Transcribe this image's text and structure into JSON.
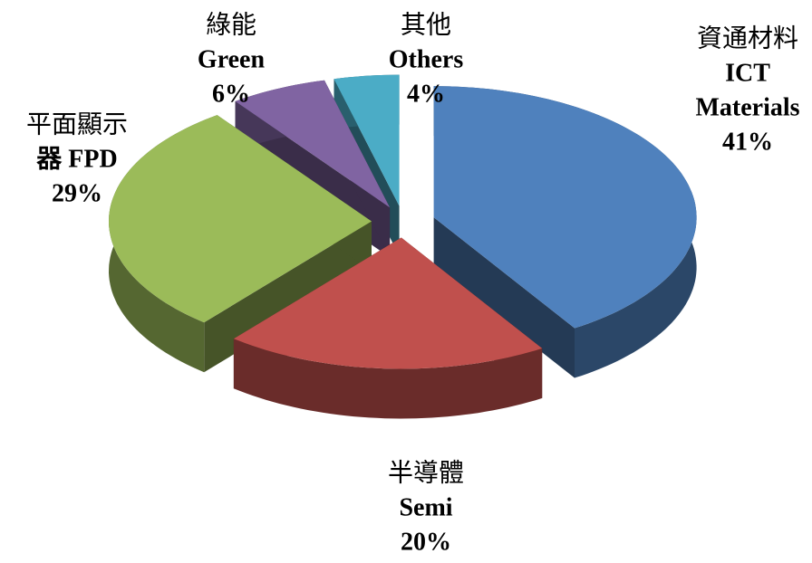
{
  "chart_data": {
    "type": "pie3d",
    "labels": [
      [
        "資通材料",
        "ICT",
        "Materials"
      ],
      [
        "半導體",
        "Semi"
      ],
      [
        "平面顯示",
        "器 FPD"
      ],
      [
        "綠能",
        "Green"
      ],
      [
        "其他",
        "Others"
      ]
    ],
    "values": [
      41,
      20,
      29,
      6,
      4
    ],
    "value_labels": [
      "41%",
      "20%",
      "29%",
      "6%",
      "4%"
    ],
    "colors": [
      "#4f81bd",
      "#c0504d",
      "#9bbb59",
      "#8064a2",
      "#4bacc6"
    ]
  }
}
